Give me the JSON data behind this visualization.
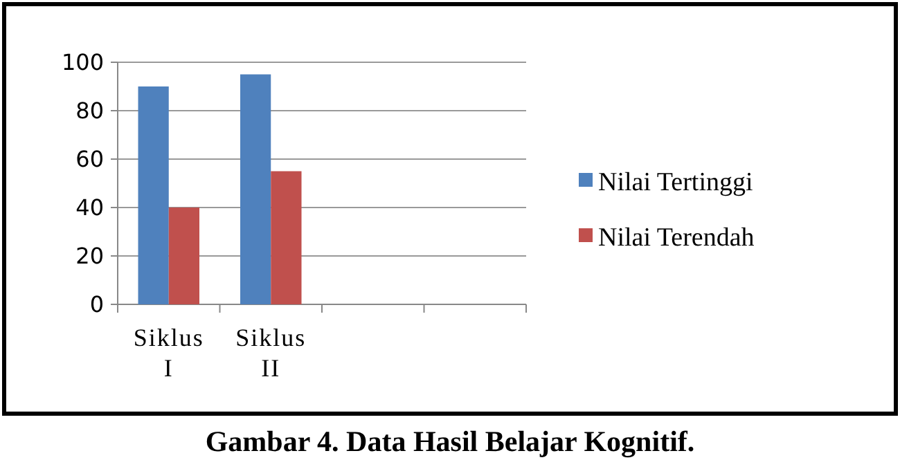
{
  "chart_data": {
    "type": "bar",
    "categories": [
      "Siklus I",
      "Siklus II",
      null,
      null
    ],
    "series": [
      {
        "name": "Nilai Tertinggi",
        "color": "#4f81bd",
        "values": [
          90,
          95,
          null,
          null
        ]
      },
      {
        "name": "Nilai Terendah",
        "color": "#c0504d",
        "values": [
          40,
          55,
          null,
          null
        ]
      }
    ],
    "ylim": [
      0,
      100
    ],
    "yticks": [
      0,
      20,
      40,
      60,
      80,
      100
    ],
    "grid": "y",
    "legend": "right",
    "annotations": [
      "Gambar 4. Data Hasil Belajar Kognitif."
    ]
  }
}
